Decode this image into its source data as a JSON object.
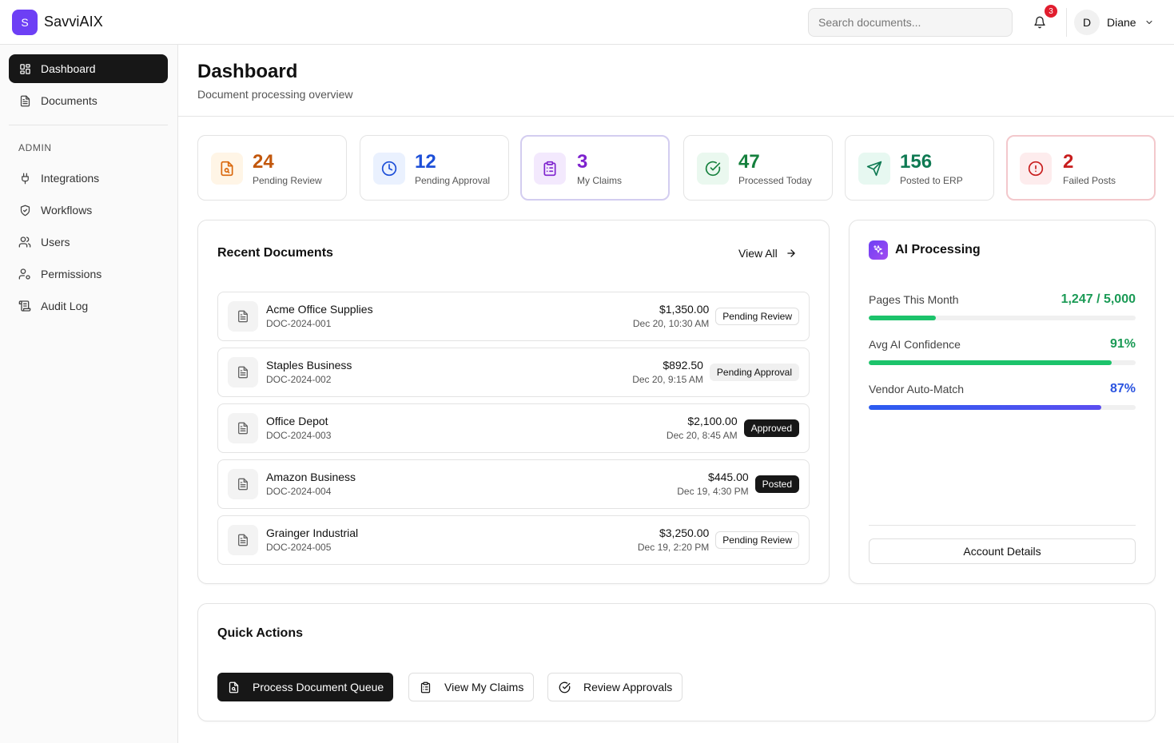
{
  "app": {
    "logo_letter": "S",
    "name": "SavviAIX"
  },
  "header": {
    "search_placeholder": "Search documents...",
    "notification_count": "3",
    "user_initial": "D",
    "user_name": "Diane"
  },
  "sidebar": {
    "items": [
      {
        "label": "Dashboard",
        "icon": "dashboard-icon",
        "active": true
      },
      {
        "label": "Documents",
        "icon": "document-icon",
        "active": false
      }
    ],
    "admin_label": "ADMIN",
    "admin_items": [
      {
        "label": "Integrations",
        "icon": "plug-icon"
      },
      {
        "label": "Workflows",
        "icon": "shield-icon"
      },
      {
        "label": "Users",
        "icon": "users-icon"
      },
      {
        "label": "Permissions",
        "icon": "user-cog-icon"
      },
      {
        "label": "Audit Log",
        "icon": "scroll-icon"
      }
    ]
  },
  "page": {
    "title": "Dashboard",
    "subtitle": "Document processing overview"
  },
  "stats": [
    {
      "value": "24",
      "label": "Pending Review",
      "icon": "file-search-icon",
      "color": "#c2570c",
      "bg": "#fff5e6"
    },
    {
      "value": "12",
      "label": "Pending Approval",
      "icon": "clock-icon",
      "color": "#1d4fd8",
      "bg": "#eaf1fe"
    },
    {
      "value": "3",
      "label": "My Claims",
      "icon": "clipboard-icon",
      "color": "#7e22ce",
      "bg": "#f3e9fd"
    },
    {
      "value": "47",
      "label": "Processed Today",
      "icon": "check-circle-icon",
      "color": "#15803d",
      "bg": "#eaf8ef"
    },
    {
      "value": "156",
      "label": "Posted to ERP",
      "icon": "send-icon",
      "color": "#0f7a53",
      "bg": "#e7f8f1"
    },
    {
      "value": "2",
      "label": "Failed Posts",
      "icon": "alert-circle-icon",
      "color": "#c81e1e",
      "bg": "#fdeced"
    }
  ],
  "recent": {
    "title": "Recent Documents",
    "view_all": "View All",
    "rows": [
      {
        "name": "Acme Office Supplies",
        "id": "DOC-2024-001",
        "amount": "$1,350.00",
        "date": "Dec 20, 10:30 AM",
        "status": "Pending Review",
        "style": "outline"
      },
      {
        "name": "Staples Business",
        "id": "DOC-2024-002",
        "amount": "$892.50",
        "date": "Dec 20, 9:15 AM",
        "status": "Pending Approval",
        "style": "soft"
      },
      {
        "name": "Office Depot",
        "id": "DOC-2024-003",
        "amount": "$2,100.00",
        "date": "Dec 20, 8:45 AM",
        "status": "Approved",
        "style": "dark"
      },
      {
        "name": "Amazon Business",
        "id": "DOC-2024-004",
        "amount": "$445.00",
        "date": "Dec 19, 4:30 PM",
        "status": "Posted",
        "style": "dark"
      },
      {
        "name": "Grainger Industrial",
        "id": "DOC-2024-005",
        "amount": "$3,250.00",
        "date": "Dec 19, 2:20 PM",
        "status": "Pending Review",
        "style": "outline"
      }
    ]
  },
  "ai": {
    "title": "AI Processing",
    "metrics": [
      {
        "label": "Pages This Month",
        "value": "1,247 / 5,000",
        "fraction": 0.2494,
        "color": "#1a9a55",
        "fill": "#1cc36b"
      },
      {
        "label": "Avg AI Confidence",
        "value": "91%",
        "fraction": 0.91,
        "color": "#1a9a55",
        "fill": "#1cc36b"
      },
      {
        "label": "Vendor Auto-Match",
        "value": "87%",
        "fraction": 0.87,
        "color": "#2b54e0",
        "fill": "linear-gradient(90deg,#2b5bf0,#5b4ef0)"
      }
    ],
    "button": "Account Details"
  },
  "quick": {
    "title": "Quick Actions",
    "buttons": [
      {
        "label": "Process Document Queue",
        "icon": "file-search-icon",
        "primary": true
      },
      {
        "label": "View My Claims",
        "icon": "clipboard-icon",
        "primary": false
      },
      {
        "label": "Review Approvals",
        "icon": "check-circle-icon",
        "primary": false
      }
    ]
  }
}
